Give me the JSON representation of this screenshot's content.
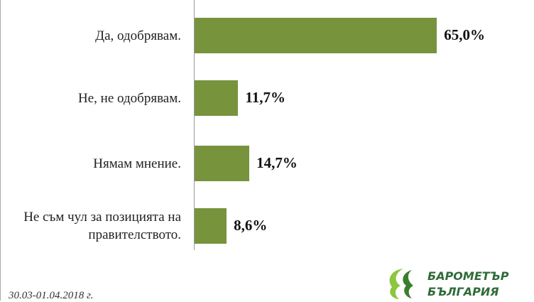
{
  "chart_data": {
    "type": "bar",
    "orientation": "horizontal",
    "categories": [
      "Да, одобрявам.",
      "Не, не одобрявам.",
      "Нямам мнение.",
      "Не съм чул за позицията на правителството."
    ],
    "values": [
      65.0,
      11.7,
      14.7,
      8.6
    ],
    "value_labels": [
      "65,0%",
      "11,7%",
      "14,7%",
      "8,6%"
    ],
    "color": "#77933c",
    "annotations": [
      "30.03-01.04.2018 г.",
      "БАРОМЕТЪР",
      "БЪЛГАРИЯ"
    ]
  }
}
